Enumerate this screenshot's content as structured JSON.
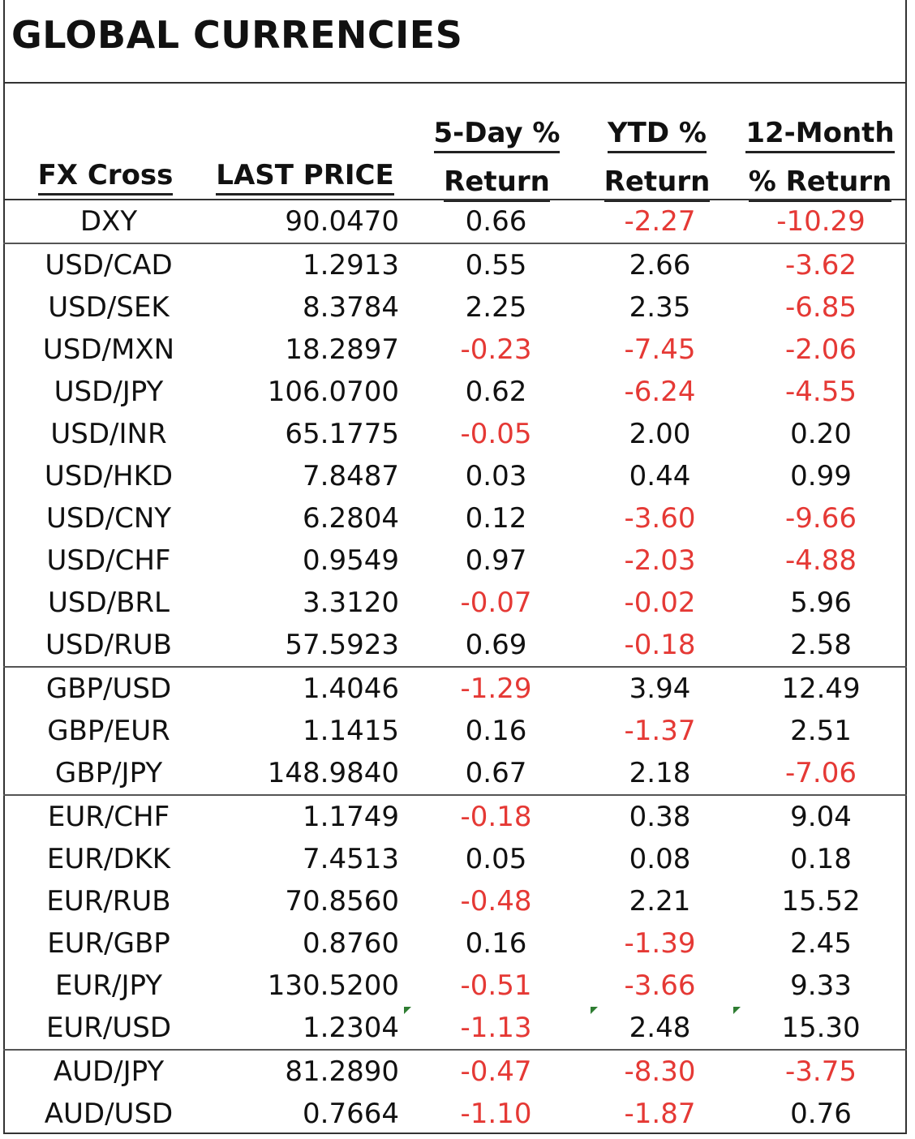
{
  "title": "GLOBAL CURRENCIES",
  "headers": {
    "fx_cross": "FX Cross",
    "last_price": "LAST PRICE",
    "five_day_l1": "5-Day %",
    "five_day_l2": "Return",
    "ytd_l1": "YTD %",
    "ytd_l2": "Return",
    "twelve_l1": "12-Month",
    "twelve_l2": "% Return"
  },
  "negative_color": "#e53935",
  "rows": [
    {
      "fx": "DXY",
      "last": "90.0470",
      "d5": "0.66",
      "ytd": "-2.27",
      "m12": "-10.29"
    },
    {
      "fx": "USD/CAD",
      "last": "1.2913",
      "d5": "0.55",
      "ytd": "2.66",
      "m12": "-3.62"
    },
    {
      "fx": "USD/SEK",
      "last": "8.3784",
      "d5": "2.25",
      "ytd": "2.35",
      "m12": "-6.85"
    },
    {
      "fx": "USD/MXN",
      "last": "18.2897",
      "d5": "-0.23",
      "ytd": "-7.45",
      "m12": "-2.06"
    },
    {
      "fx": "USD/JPY",
      "last": "106.0700",
      "d5": "0.62",
      "ytd": "-6.24",
      "m12": "-4.55"
    },
    {
      "fx": "USD/INR",
      "last": "65.1775",
      "d5": "-0.05",
      "ytd": "2.00",
      "m12": "0.20"
    },
    {
      "fx": "USD/HKD",
      "last": "7.8487",
      "d5": "0.03",
      "ytd": "0.44",
      "m12": "0.99"
    },
    {
      "fx": "USD/CNY",
      "last": "6.2804",
      "d5": "0.12",
      "ytd": "-3.60",
      "m12": "-9.66"
    },
    {
      "fx": "USD/CHF",
      "last": "0.9549",
      "d5": "0.97",
      "ytd": "-2.03",
      "m12": "-4.88"
    },
    {
      "fx": "USD/BRL",
      "last": "3.3120",
      "d5": "-0.07",
      "ytd": "-0.02",
      "m12": "5.96"
    },
    {
      "fx": "USD/RUB",
      "last": "57.5923",
      "d5": "0.69",
      "ytd": "-0.18",
      "m12": "2.58"
    },
    {
      "fx": "GBP/USD",
      "last": "1.4046",
      "d5": "-1.29",
      "ytd": "3.94",
      "m12": "12.49"
    },
    {
      "fx": "GBP/EUR",
      "last": "1.1415",
      "d5": "0.16",
      "ytd": "-1.37",
      "m12": "2.51"
    },
    {
      "fx": "GBP/JPY",
      "last": "148.9840",
      "d5": "0.67",
      "ytd": "2.18",
      "m12": "-7.06"
    },
    {
      "fx": "EUR/CHF",
      "last": "1.1749",
      "d5": "-0.18",
      "ytd": "0.38",
      "m12": "9.04"
    },
    {
      "fx": "EUR/DKK",
      "last": "7.4513",
      "d5": "0.05",
      "ytd": "0.08",
      "m12": "0.18"
    },
    {
      "fx": "EUR/RUB",
      "last": "70.8560",
      "d5": "-0.48",
      "ytd": "2.21",
      "m12": "15.52"
    },
    {
      "fx": "EUR/GBP",
      "last": "0.8760",
      "d5": "0.16",
      "ytd": "-1.39",
      "m12": "2.45"
    },
    {
      "fx": "EUR/JPY",
      "last": "130.5200",
      "d5": "-0.51",
      "ytd": "-3.66",
      "m12": "9.33"
    },
    {
      "fx": "EUR/USD",
      "last": "1.2304",
      "d5": "-1.13",
      "ytd": "2.48",
      "m12": "15.30"
    },
    {
      "fx": "AUD/JPY",
      "last": "81.2890",
      "d5": "-0.47",
      "ytd": "-8.30",
      "m12": "-3.75"
    },
    {
      "fx": "AUD/USD",
      "last": "0.7664",
      "d5": "-1.10",
      "ytd": "-1.87",
      "m12": "0.76"
    }
  ]
}
